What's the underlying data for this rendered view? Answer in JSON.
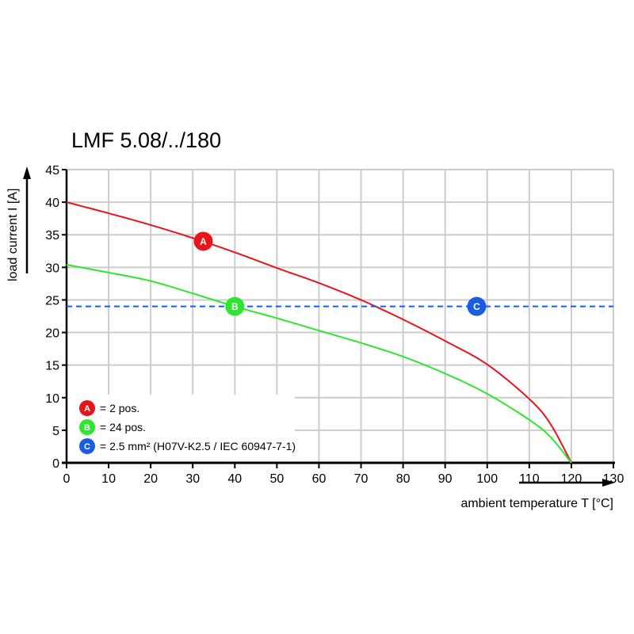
{
  "chart_data": {
    "type": "line",
    "title": "LMF 5.08/../180",
    "xlabel": "ambient temperature T [°C]",
    "ylabel": "load current I [A]",
    "xlim": [
      0,
      130
    ],
    "ylim": [
      0,
      45
    ],
    "xticks": [
      0,
      10,
      20,
      30,
      40,
      50,
      60,
      70,
      80,
      90,
      100,
      110,
      120,
      130
    ],
    "yticks": [
      0,
      5,
      10,
      15,
      20,
      25,
      30,
      35,
      40,
      45
    ],
    "grid": true,
    "legend_position": "bottom-left",
    "series": [
      {
        "name": "= 2 pos.",
        "marker": "A",
        "color": "#e8141b",
        "x": [
          0,
          10,
          20,
          30,
          40,
          50,
          60,
          70,
          80,
          90,
          100,
          110,
          115,
          120
        ],
        "y": [
          40.0,
          38.3,
          36.5,
          34.5,
          32.3,
          29.9,
          27.6,
          25.0,
          22.0,
          18.7,
          15.1,
          9.8,
          6.0,
          0
        ],
        "marker_at": [
          32.5,
          34
        ]
      },
      {
        "name": "= 24 pos.",
        "marker": "B",
        "color": "#2ee62e",
        "x": [
          0,
          10,
          20,
          30,
          40,
          50,
          60,
          70,
          80,
          90,
          100,
          110,
          115,
          120
        ],
        "y": [
          30.4,
          29.2,
          27.9,
          26.0,
          24.0,
          22.2,
          20.3,
          18.4,
          16.3,
          13.7,
          10.6,
          6.6,
          4.0,
          0
        ],
        "marker_at": [
          40,
          24
        ]
      },
      {
        "name": "= 2.5 mm² (H07V-K2.5 / IEC 60947-7-1)",
        "marker": "C",
        "color": "#1a5ce6",
        "x": [
          0,
          130
        ],
        "y": [
          24,
          24
        ],
        "dashed": true,
        "marker_at": [
          97.5,
          24
        ]
      }
    ]
  }
}
